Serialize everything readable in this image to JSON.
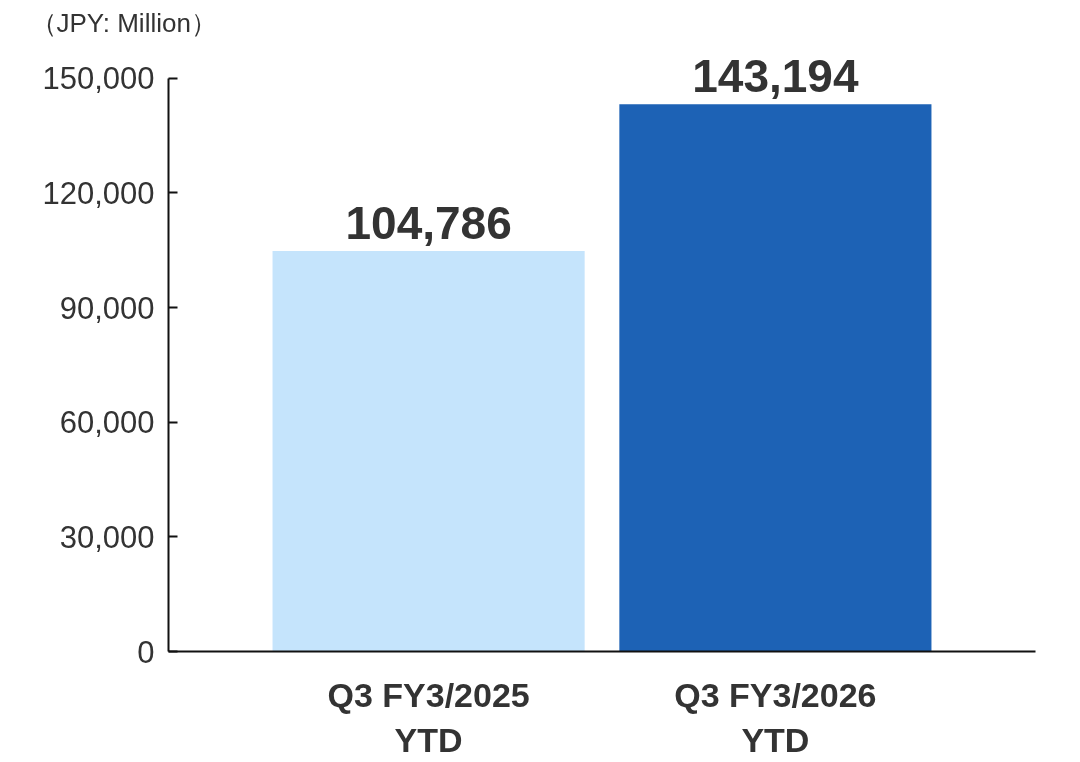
{
  "chart_data": {
    "type": "bar",
    "ylabel": "（JPY: Million）",
    "categories": [
      "Q3 FY3/2025 YTD",
      "Q3 FY3/2026 YTD"
    ],
    "values": [
      104786,
      143194
    ],
    "value_labels": [
      "104,786",
      "143,194"
    ],
    "colors": [
      "#c5e4fc",
      "#1d62b5"
    ],
    "ylim": [
      0,
      150000
    ],
    "yticks": [
      {
        "value": 0,
        "label": "0"
      },
      {
        "value": 30000,
        "label": "30,000"
      },
      {
        "value": 60000,
        "label": "60,000"
      },
      {
        "value": 90000,
        "label": "90,000"
      },
      {
        "value": 120000,
        "label": "120,000"
      },
      {
        "value": 150000,
        "label": "150,000"
      }
    ]
  }
}
